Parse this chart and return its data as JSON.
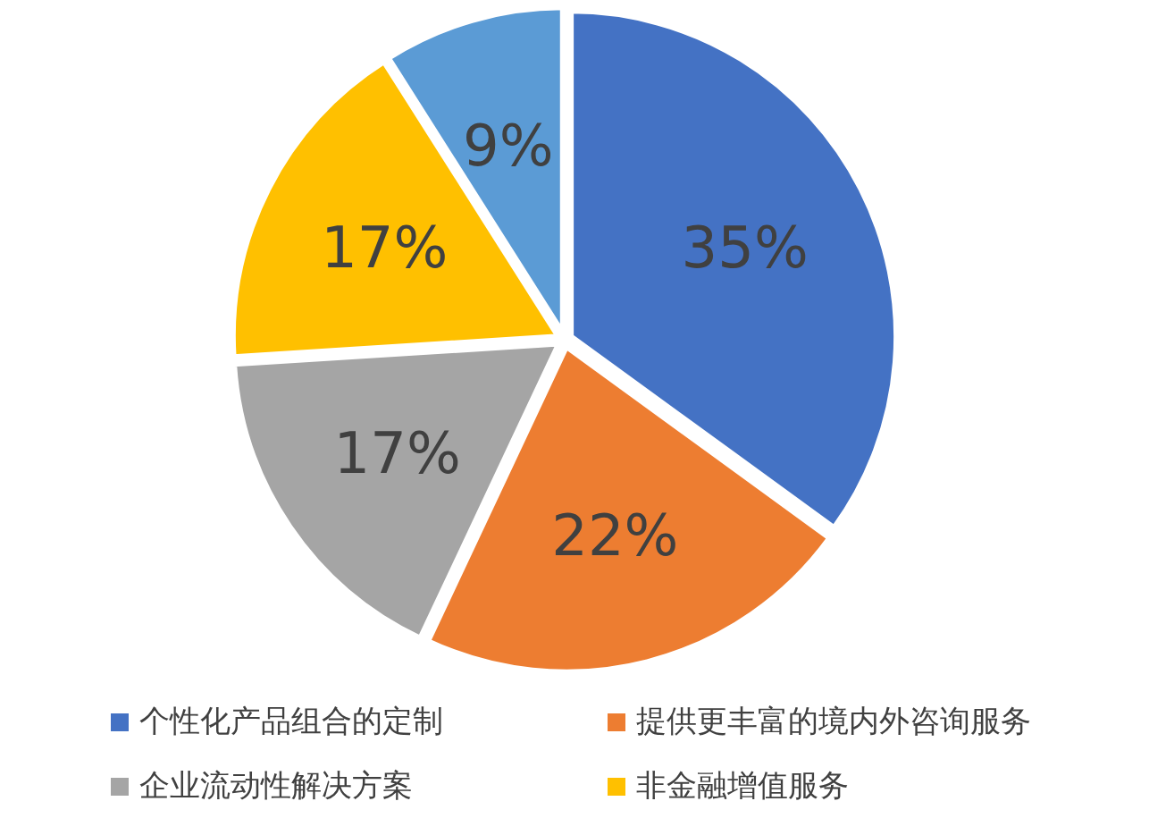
{
  "chart_data": {
    "type": "pie",
    "categories": [
      "个性化产品组合的定制",
      "提供更丰富的境内外咨询服务",
      "企业流动性解决方案",
      "非金融增值服务",
      null
    ],
    "values": [
      35,
      22,
      17,
      17,
      9
    ],
    "value_labels": [
      "35%",
      "22%",
      "17%",
      "17%",
      "9%"
    ],
    "colors": [
      "#4472c4",
      "#ed7d31",
      "#a5a5a5",
      "#ffc000",
      "#5b9bd5"
    ],
    "legend": "bottom"
  }
}
